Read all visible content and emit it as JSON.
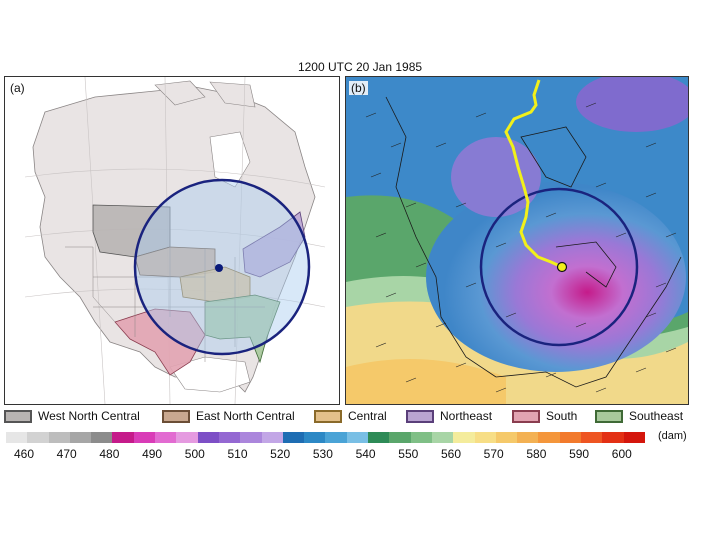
{
  "title": "1200 UTC 20 Jan 1985",
  "panels": {
    "a": {
      "label": "(a)"
    },
    "b": {
      "label": "(b)"
    }
  },
  "legend": [
    {
      "label": "West North Central",
      "fill": "#b8b4b2",
      "stroke": "#555555"
    },
    {
      "label": "East North Central",
      "fill": "#c9a88f",
      "stroke": "#6b4e36"
    },
    {
      "label": "Central",
      "fill": "#e3c08a",
      "stroke": "#8a6a2a"
    },
    {
      "label": "Northeast",
      "fill": "#b9a3d1",
      "stroke": "#5a3f7a"
    },
    {
      "label": "South",
      "fill": "#e2a3b1",
      "stroke": "#8a3d4f"
    },
    {
      "label": "Southeast",
      "fill": "#a8c99c",
      "stroke": "#3f6a36"
    }
  ],
  "colorbar": {
    "unit": "(dam)",
    "colors": [
      "#e6e6e6",
      "#d2d2d2",
      "#bdbdbd",
      "#a6a6a6",
      "#8c8c8c",
      "#c51b8a",
      "#d93cb7",
      "#e26bd1",
      "#e59ae0",
      "#7d4fc6",
      "#9468d2",
      "#ab86dc",
      "#c2a6e6",
      "#1e6db3",
      "#2c88c5",
      "#4aa3d6",
      "#79bfe5",
      "#2e8b57",
      "#5aa66b",
      "#7fbf86",
      "#a8d5a6",
      "#f4ec9c",
      "#f7de86",
      "#f5c96a",
      "#f3b153",
      "#f4963b",
      "#f27a2c",
      "#ee5522",
      "#e33014",
      "#d4160c"
    ],
    "ticks": [
      "460",
      "470",
      "480",
      "490",
      "500",
      "510",
      "520",
      "530",
      "540",
      "550",
      "560",
      "570",
      "580",
      "590",
      "600"
    ]
  },
  "map_a": {
    "point_color": "#0a1a7a",
    "circle_color": "#1a237e"
  },
  "map_b": {
    "track_color": "#f2f01a",
    "circle_color": "#1a237e"
  }
}
